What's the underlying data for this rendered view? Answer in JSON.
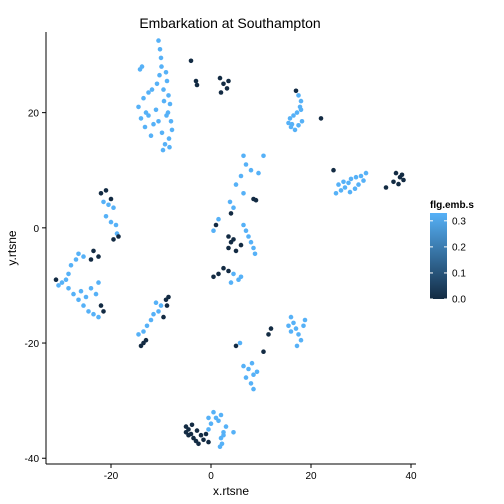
{
  "chart_data": {
    "type": "scatter",
    "title": "Embarkation at Southampton",
    "xlabel": "x.rtsne",
    "ylabel": "y.rtsne",
    "xlim": [
      -33,
      41
    ],
    "ylim": [
      -41,
      34
    ],
    "xticks": [
      -20,
      0,
      20,
      40
    ],
    "yticks": [
      -40,
      -20,
      0,
      20
    ],
    "grid": false,
    "legend": {
      "title": "flg.emb.s",
      "placement": "right",
      "type": "colorbar",
      "ticks": [
        0.0,
        0.1,
        0.2,
        0.3
      ],
      "tick_labels": [
        "0.0",
        "0.1",
        "0.2",
        "0.3"
      ],
      "range": [
        0,
        0.33
      ],
      "color_low": "#132b43",
      "color_high": "#56b1f7"
    },
    "points": [
      {
        "x": -10.5,
        "y": 32.5,
        "c": 0.33
      },
      {
        "x": -10.2,
        "y": 31.0,
        "c": 0.33
      },
      {
        "x": -10.0,
        "y": 29.5,
        "c": 0.33
      },
      {
        "x": -9.9,
        "y": 28.0,
        "c": 0.33
      },
      {
        "x": -10.3,
        "y": 26.5,
        "c": 0.33
      },
      {
        "x": -10.8,
        "y": 25.0,
        "c": 0.33
      },
      {
        "x": -9.5,
        "y": 24.0,
        "c": 0.33
      },
      {
        "x": -8.8,
        "y": 25.5,
        "c": 0.33
      },
      {
        "x": -8.5,
        "y": 23.0,
        "c": 0.33
      },
      {
        "x": -8.2,
        "y": 21.5,
        "c": 0.33
      },
      {
        "x": -8.6,
        "y": 20.0,
        "c": 0.33
      },
      {
        "x": -8.0,
        "y": 18.5,
        "c": 0.33
      },
      {
        "x": -7.8,
        "y": 17.0,
        "c": 0.33
      },
      {
        "x": -8.4,
        "y": 15.5,
        "c": 0.33
      },
      {
        "x": -9.2,
        "y": 14.5,
        "c": 0.33
      },
      {
        "x": -9.8,
        "y": 16.5,
        "c": 0.33
      },
      {
        "x": -10.5,
        "y": 18.5,
        "c": 0.33
      },
      {
        "x": -11.0,
        "y": 20.5,
        "c": 0.33
      },
      {
        "x": -11.5,
        "y": 18.0,
        "c": 0.33
      },
      {
        "x": -12.0,
        "y": 16.0,
        "c": 0.33
      },
      {
        "x": -13.5,
        "y": 22.5,
        "c": 0.33
      },
      {
        "x": -14.5,
        "y": 21.0,
        "c": 0.33
      },
      {
        "x": -14.0,
        "y": 19.0,
        "c": 0.33
      },
      {
        "x": -13.0,
        "y": 20.0,
        "c": 0.33
      },
      {
        "x": -12.5,
        "y": 23.5,
        "c": 0.33
      },
      {
        "x": -11.8,
        "y": 24.0,
        "c": 0.33
      },
      {
        "x": -13.8,
        "y": 28.0,
        "c": 0.33
      },
      {
        "x": -14.2,
        "y": 27.5,
        "c": 0.33
      },
      {
        "x": -13.2,
        "y": 17.5,
        "c": 0.33
      },
      {
        "x": -12.5,
        "y": 19.5,
        "c": 0.33
      },
      {
        "x": -9.0,
        "y": 27.0,
        "c": 0.33
      },
      {
        "x": -9.4,
        "y": 22.0,
        "c": 0.33
      },
      {
        "x": -8.9,
        "y": 19.5,
        "c": 0.33
      },
      {
        "x": -9.6,
        "y": 13.5,
        "c": 0.33
      },
      {
        "x": -8.3,
        "y": 14.0,
        "c": 0.33
      },
      {
        "x": -4.0,
        "y": 29.0,
        "c": 0.0
      },
      {
        "x": -3.0,
        "y": 25.5,
        "c": 0.0
      },
      {
        "x": -2.8,
        "y": 24.8,
        "c": 0.0
      },
      {
        "x": 1.8,
        "y": 26.0,
        "c": 0.0
      },
      {
        "x": 2.5,
        "y": 25.0,
        "c": 0.0
      },
      {
        "x": 3.2,
        "y": 24.2,
        "c": 0.0
      },
      {
        "x": 2.0,
        "y": 23.5,
        "c": 0.0
      },
      {
        "x": 3.5,
        "y": 25.5,
        "c": 0.0
      },
      {
        "x": 17.5,
        "y": 23.0,
        "c": 0.33
      },
      {
        "x": 18.0,
        "y": 22.0,
        "c": 0.33
      },
      {
        "x": 17.8,
        "y": 21.0,
        "c": 0.33
      },
      {
        "x": 17.2,
        "y": 20.0,
        "c": 0.33
      },
      {
        "x": 16.5,
        "y": 19.5,
        "c": 0.33
      },
      {
        "x": 15.8,
        "y": 19.0,
        "c": 0.33
      },
      {
        "x": 15.5,
        "y": 18.2,
        "c": 0.33
      },
      {
        "x": 16.0,
        "y": 17.5,
        "c": 0.33
      },
      {
        "x": 16.8,
        "y": 17.0,
        "c": 0.33
      },
      {
        "x": 17.5,
        "y": 17.8,
        "c": 0.33
      },
      {
        "x": 18.2,
        "y": 18.5,
        "c": 0.33
      },
      {
        "x": 18.0,
        "y": 20.5,
        "c": 0.33
      },
      {
        "x": 16.2,
        "y": 18.0,
        "c": 0.33
      },
      {
        "x": 17.0,
        "y": 23.8,
        "c": 0.0
      },
      {
        "x": 22.0,
        "y": 19.0,
        "c": 0.0
      },
      {
        "x": 31.0,
        "y": 9.5,
        "c": 0.33
      },
      {
        "x": 30.0,
        "y": 9.0,
        "c": 0.33
      },
      {
        "x": 29.0,
        "y": 8.8,
        "c": 0.33
      },
      {
        "x": 28.0,
        "y": 8.5,
        "c": 0.33
      },
      {
        "x": 27.5,
        "y": 7.8,
        "c": 0.33
      },
      {
        "x": 26.8,
        "y": 7.0,
        "c": 0.33
      },
      {
        "x": 26.0,
        "y": 6.5,
        "c": 0.33
      },
      {
        "x": 25.5,
        "y": 7.5,
        "c": 0.33
      },
      {
        "x": 26.5,
        "y": 8.0,
        "c": 0.33
      },
      {
        "x": 27.8,
        "y": 6.2,
        "c": 0.33
      },
      {
        "x": 28.8,
        "y": 6.8,
        "c": 0.33
      },
      {
        "x": 29.5,
        "y": 7.5,
        "c": 0.33
      },
      {
        "x": 30.5,
        "y": 8.2,
        "c": 0.33
      },
      {
        "x": 25.0,
        "y": 6.0,
        "c": 0.33
      },
      {
        "x": 24.5,
        "y": 10.0,
        "c": 0.0
      },
      {
        "x": 35.0,
        "y": 7.0,
        "c": 0.0
      },
      {
        "x": 36.5,
        "y": 8.0,
        "c": 0.0
      },
      {
        "x": 37.0,
        "y": 9.5,
        "c": 0.0
      },
      {
        "x": 37.8,
        "y": 8.8,
        "c": 0.0
      },
      {
        "x": 38.2,
        "y": 9.2,
        "c": 0.0
      },
      {
        "x": 38.5,
        "y": 8.3,
        "c": 0.0
      },
      {
        "x": 37.5,
        "y": 7.6,
        "c": 0.0
      },
      {
        "x": -22.0,
        "y": 6.0,
        "c": 0.0
      },
      {
        "x": -21.0,
        "y": 6.5,
        "c": 0.0
      },
      {
        "x": -20.0,
        "y": 5.0,
        "c": 0.0
      },
      {
        "x": -21.5,
        "y": 4.5,
        "c": 0.33
      },
      {
        "x": -20.5,
        "y": 4.0,
        "c": 0.33
      },
      {
        "x": -19.5,
        "y": 3.5,
        "c": 0.33
      },
      {
        "x": -21.0,
        "y": 2.0,
        "c": 0.33
      },
      {
        "x": -20.0,
        "y": 1.0,
        "c": 0.33
      },
      {
        "x": -19.0,
        "y": 0.5,
        "c": 0.33
      },
      {
        "x": -18.8,
        "y": -1.0,
        "c": 0.33
      },
      {
        "x": -19.5,
        "y": -2.0,
        "c": 0.0
      },
      {
        "x": -18.5,
        "y": -1.5,
        "c": 0.0
      },
      {
        "x": -23.5,
        "y": -4.0,
        "c": 0.0
      },
      {
        "x": -22.5,
        "y": -5.0,
        "c": 0.0
      },
      {
        "x": -24.0,
        "y": -5.5,
        "c": 0.0
      },
      {
        "x": -25.5,
        "y": -5.0,
        "c": 0.33
      },
      {
        "x": -26.5,
        "y": -4.5,
        "c": 0.33
      },
      {
        "x": -27.0,
        "y": -5.5,
        "c": 0.33
      },
      {
        "x": -28.0,
        "y": -6.5,
        "c": 0.33
      },
      {
        "x": -28.5,
        "y": -8.0,
        "c": 0.33
      },
      {
        "x": -29.0,
        "y": -9.0,
        "c": 0.33
      },
      {
        "x": -29.8,
        "y": -9.5,
        "c": 0.33
      },
      {
        "x": -30.5,
        "y": -10.0,
        "c": 0.33
      },
      {
        "x": -31.0,
        "y": -9.0,
        "c": 0.0
      },
      {
        "x": -28.5,
        "y": -10.5,
        "c": 0.33
      },
      {
        "x": -27.5,
        "y": -11.5,
        "c": 0.33
      },
      {
        "x": -26.5,
        "y": -12.5,
        "c": 0.33
      },
      {
        "x": -25.5,
        "y": -13.5,
        "c": 0.33
      },
      {
        "x": -24.5,
        "y": -14.5,
        "c": 0.33
      },
      {
        "x": -23.5,
        "y": -15.0,
        "c": 0.33
      },
      {
        "x": -22.5,
        "y": -15.5,
        "c": 0.33
      },
      {
        "x": -21.5,
        "y": -14.5,
        "c": 0.0
      },
      {
        "x": -22.0,
        "y": -13.5,
        "c": 0.0
      },
      {
        "x": -23.0,
        "y": -11.5,
        "c": 0.33
      },
      {
        "x": -24.0,
        "y": -10.5,
        "c": 0.33
      },
      {
        "x": -22.5,
        "y": -9.5,
        "c": 0.33
      },
      {
        "x": -25.0,
        "y": -12.0,
        "c": 0.33
      },
      {
        "x": -26.0,
        "y": -11.0,
        "c": 0.33
      },
      {
        "x": 6.5,
        "y": 12.5,
        "c": 0.33
      },
      {
        "x": 7.0,
        "y": 11.0,
        "c": 0.33
      },
      {
        "x": 8.0,
        "y": 10.0,
        "c": 0.33
      },
      {
        "x": 9.5,
        "y": 9.5,
        "c": 0.33
      },
      {
        "x": 10.5,
        "y": 12.5,
        "c": 0.33
      },
      {
        "x": 6.0,
        "y": 9.0,
        "c": 0.33
      },
      {
        "x": 5.0,
        "y": 7.5,
        "c": 0.33
      },
      {
        "x": 6.5,
        "y": 6.0,
        "c": 0.33
      },
      {
        "x": 3.8,
        "y": 4.5,
        "c": 0.33
      },
      {
        "x": 4.5,
        "y": 3.5,
        "c": 0.33
      },
      {
        "x": 4.0,
        "y": 2.5,
        "c": 0.0
      },
      {
        "x": 8.5,
        "y": 5.0,
        "c": 0.0
      },
      {
        "x": 9.0,
        "y": 4.8,
        "c": 0.0
      },
      {
        "x": 1.5,
        "y": 1.5,
        "c": 0.33
      },
      {
        "x": 1.0,
        "y": 0.5,
        "c": 0.0
      },
      {
        "x": 0.5,
        "y": -0.5,
        "c": 0.33
      },
      {
        "x": 6.5,
        "y": 0.5,
        "c": 0.33
      },
      {
        "x": 7.0,
        "y": -0.5,
        "c": 0.33
      },
      {
        "x": 7.5,
        "y": -1.5,
        "c": 0.33
      },
      {
        "x": 8.0,
        "y": -2.5,
        "c": 0.33
      },
      {
        "x": 8.5,
        "y": -3.5,
        "c": 0.33
      },
      {
        "x": 8.8,
        "y": -4.5,
        "c": 0.33
      },
      {
        "x": 6.0,
        "y": -3.0,
        "c": 0.0
      },
      {
        "x": 3.5,
        "y": -1.5,
        "c": 0.0
      },
      {
        "x": 4.0,
        "y": -2.5,
        "c": 0.0
      },
      {
        "x": 3.5,
        "y": -3.5,
        "c": 0.0
      },
      {
        "x": 4.5,
        "y": -2.0,
        "c": 0.0
      },
      {
        "x": 5.0,
        "y": -4.0,
        "c": 0.0
      },
      {
        "x": 2.5,
        "y": -7.0,
        "c": 0.0
      },
      {
        "x": 3.5,
        "y": -7.5,
        "c": 0.0
      },
      {
        "x": 4.5,
        "y": -8.0,
        "c": 0.33
      },
      {
        "x": 5.5,
        "y": -9.0,
        "c": 0.33
      },
      {
        "x": 4.0,
        "y": -9.5,
        "c": 0.33
      },
      {
        "x": 0.5,
        "y": -8.5,
        "c": 0.0
      },
      {
        "x": 1.5,
        "y": -8.0,
        "c": 0.0
      },
      {
        "x": 6.0,
        "y": -8.5,
        "c": 0.33
      },
      {
        "x": -8.5,
        "y": -12.0,
        "c": 0.0
      },
      {
        "x": -9.0,
        "y": -12.5,
        "c": 0.0
      },
      {
        "x": -8.8,
        "y": -13.5,
        "c": 0.0
      },
      {
        "x": -10.0,
        "y": -13.5,
        "c": 0.33
      },
      {
        "x": -10.5,
        "y": -14.5,
        "c": 0.33
      },
      {
        "x": -11.5,
        "y": -15.0,
        "c": 0.33
      },
      {
        "x": -12.0,
        "y": -16.0,
        "c": 0.33
      },
      {
        "x": -12.8,
        "y": -17.0,
        "c": 0.33
      },
      {
        "x": -13.5,
        "y": -18.0,
        "c": 0.33
      },
      {
        "x": -14.5,
        "y": -18.5,
        "c": 0.33
      },
      {
        "x": -11.0,
        "y": -13.0,
        "c": 0.33
      },
      {
        "x": -9.5,
        "y": -15.5,
        "c": 0.0
      },
      {
        "x": -13.5,
        "y": -20.0,
        "c": 0.0
      },
      {
        "x": -14.0,
        "y": -20.5,
        "c": 0.0
      },
      {
        "x": -13.0,
        "y": -19.5,
        "c": 0.0
      },
      {
        "x": 16.0,
        "y": -15.5,
        "c": 0.33
      },
      {
        "x": 16.5,
        "y": -16.5,
        "c": 0.33
      },
      {
        "x": 17.0,
        "y": -17.5,
        "c": 0.33
      },
      {
        "x": 17.5,
        "y": -18.5,
        "c": 0.33
      },
      {
        "x": 18.0,
        "y": -19.5,
        "c": 0.33
      },
      {
        "x": 18.5,
        "y": -17.0,
        "c": 0.33
      },
      {
        "x": 16.0,
        "y": -18.0,
        "c": 0.33
      },
      {
        "x": 15.5,
        "y": -17.0,
        "c": 0.33
      },
      {
        "x": 17.2,
        "y": -20.5,
        "c": 0.33
      },
      {
        "x": 18.8,
        "y": -16.0,
        "c": 0.33
      },
      {
        "x": 12.0,
        "y": -17.5,
        "c": 0.0
      },
      {
        "x": 11.5,
        "y": -18.5,
        "c": 0.0
      },
      {
        "x": 10.5,
        "y": -21.5,
        "c": 0.0
      },
      {
        "x": 5.0,
        "y": -20.5,
        "c": 0.0
      },
      {
        "x": 5.8,
        "y": -20.0,
        "c": 0.33
      },
      {
        "x": 6.5,
        "y": -24.0,
        "c": 0.33
      },
      {
        "x": 7.5,
        "y": -24.5,
        "c": 0.33
      },
      {
        "x": 8.5,
        "y": -25.5,
        "c": 0.33
      },
      {
        "x": 7.0,
        "y": -26.0,
        "c": 0.33
      },
      {
        "x": 8.0,
        "y": -27.0,
        "c": 0.33
      },
      {
        "x": 8.5,
        "y": -28.0,
        "c": 0.33
      },
      {
        "x": 9.2,
        "y": -25.0,
        "c": 0.33
      },
      {
        "x": 8.2,
        "y": -23.5,
        "c": 0.33
      },
      {
        "x": 0.5,
        "y": -32.0,
        "c": 0.33
      },
      {
        "x": 1.0,
        "y": -33.0,
        "c": 0.33
      },
      {
        "x": 1.5,
        "y": -33.5,
        "c": 0.33
      },
      {
        "x": 0.0,
        "y": -34.0,
        "c": 0.33
      },
      {
        "x": -0.5,
        "y": -33.0,
        "c": 0.33
      },
      {
        "x": 2.0,
        "y": -32.5,
        "c": 0.33
      },
      {
        "x": -0.5,
        "y": -35.0,
        "c": 0.33
      },
      {
        "x": 2.5,
        "y": -35.5,
        "c": 0.33
      },
      {
        "x": 3.0,
        "y": -34.5,
        "c": 0.33
      },
      {
        "x": 2.0,
        "y": -36.5,
        "c": 0.33
      },
      {
        "x": 2.2,
        "y": -37.5,
        "c": 0.33
      },
      {
        "x": 1.8,
        "y": -38.0,
        "c": 0.33
      },
      {
        "x": -5.0,
        "y": -34.5,
        "c": 0.0
      },
      {
        "x": -4.5,
        "y": -35.0,
        "c": 0.0
      },
      {
        "x": -5.0,
        "y": -35.5,
        "c": 0.0
      },
      {
        "x": -4.0,
        "y": -35.8,
        "c": 0.0
      },
      {
        "x": -3.5,
        "y": -36.5,
        "c": 0.0
      },
      {
        "x": -4.5,
        "y": -36.0,
        "c": 0.0
      },
      {
        "x": -3.0,
        "y": -37.0,
        "c": 0.0
      },
      {
        "x": -2.5,
        "y": -37.5,
        "c": 0.0
      },
      {
        "x": -2.0,
        "y": -36.0,
        "c": 0.0
      },
      {
        "x": -1.5,
        "y": -36.8,
        "c": 0.0
      },
      {
        "x": -1.0,
        "y": -35.8,
        "c": 0.0
      },
      {
        "x": -0.5,
        "y": -37.2,
        "c": 0.0
      },
      {
        "x": -3.8,
        "y": -34.2,
        "c": 0.0
      },
      {
        "x": -2.8,
        "y": -35.2,
        "c": 0.0
      },
      {
        "x": 4.5,
        "y": -35.5,
        "c": 0.33
      },
      {
        "x": 2.5,
        "y": -36.0,
        "c": 0.33
      }
    ]
  }
}
